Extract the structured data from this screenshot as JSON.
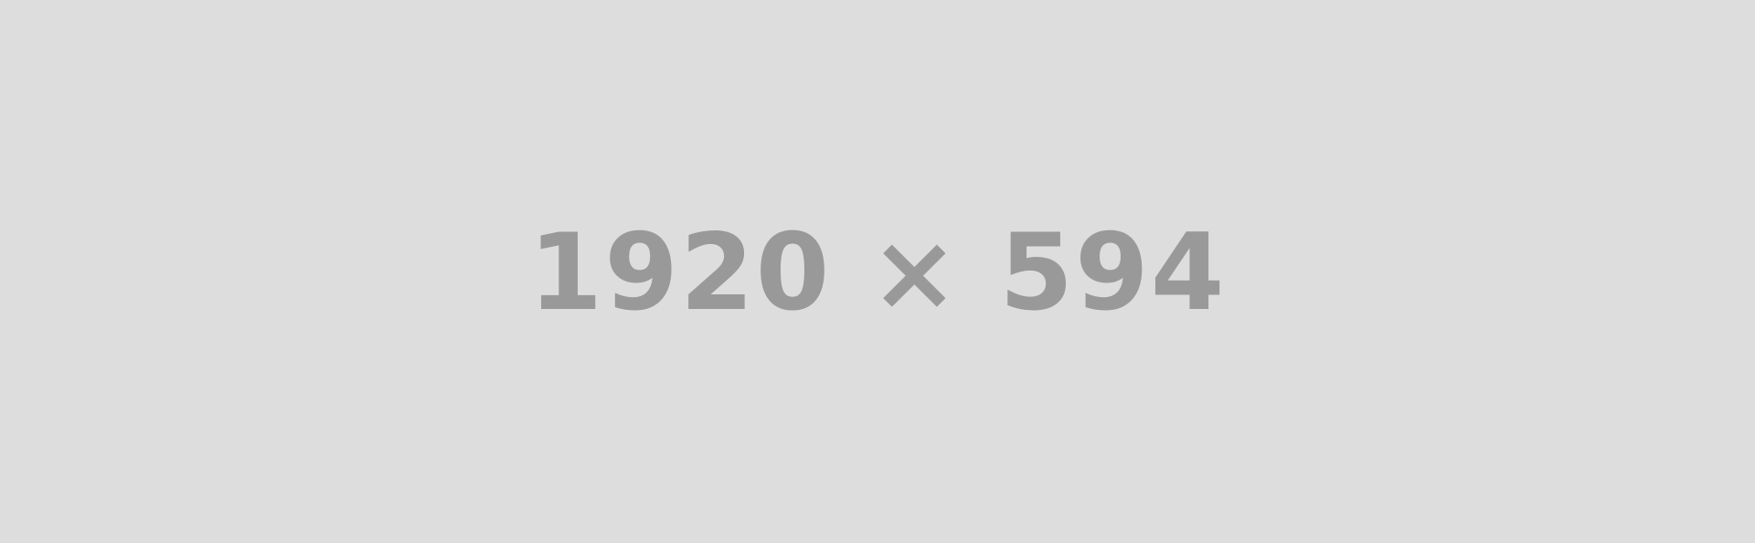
{
  "placeholder": {
    "label": "1920 × 594",
    "background_color": "#dddddd",
    "text_color": "#999999"
  }
}
